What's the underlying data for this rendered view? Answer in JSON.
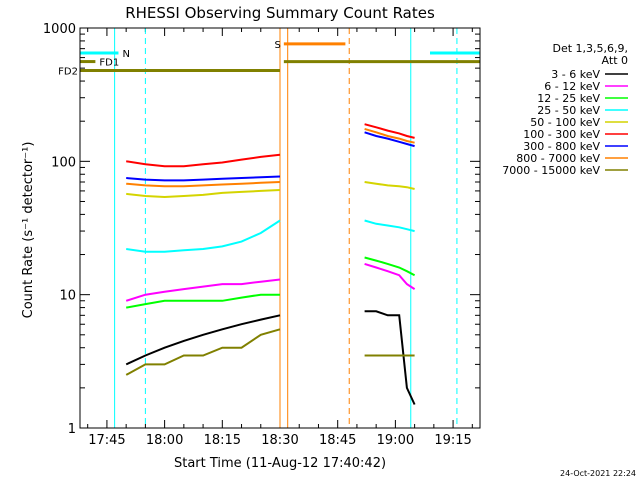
{
  "chart_data": {
    "type": "line",
    "title": "RHESSI Observing Summary Count Rates",
    "xlabel": "Start Time (11-Aug-12 17:40:42)",
    "ylabel": "Count Rate (s⁻¹ detector⁻¹)",
    "yscale": "log",
    "ylim": [
      1,
      1000
    ],
    "xlim": [
      "17:38",
      "19:22"
    ],
    "x_ticks": [
      "17:45",
      "18:00",
      "18:15",
      "18:30",
      "18:45",
      "19:00",
      "19:15"
    ],
    "y_ticks": [
      "1",
      "10",
      "100",
      "1000"
    ],
    "legend": {
      "placement": "right",
      "header": [
        "Det 1,3,5,6,9,",
        "Att 0"
      ]
    },
    "series": [
      {
        "name": "3 - 6 keV",
        "color": "#000000",
        "x": [
          "17:50",
          "17:55",
          "18:00",
          "18:05",
          "18:10",
          "18:15",
          "18:20",
          "18:25",
          "18:30"
        ],
        "values": [
          3,
          3.5,
          4,
          4.5,
          5,
          5.5,
          6,
          6.5,
          7
        ],
        "x2": [
          "18:52",
          "18:55",
          "18:58",
          "19:01",
          "19:03",
          "19:05"
        ],
        "values2": [
          7.5,
          7.5,
          7,
          7,
          2,
          1.5
        ]
      },
      {
        "name": "6 - 12 keV",
        "color": "#ff00ff",
        "x": [
          "17:50",
          "17:55",
          "18:00",
          "18:05",
          "18:10",
          "18:15",
          "18:20",
          "18:25",
          "18:30"
        ],
        "values": [
          9,
          10,
          10.5,
          11,
          11.5,
          12,
          12,
          12.5,
          13
        ],
        "x2": [
          "18:52",
          "18:55",
          "18:58",
          "19:01",
          "19:03",
          "19:05"
        ],
        "values2": [
          17,
          16,
          15,
          14,
          12,
          11
        ]
      },
      {
        "name": "12 - 25 keV",
        "color": "#00ff00",
        "x": [
          "17:50",
          "17:55",
          "18:00",
          "18:05",
          "18:10",
          "18:15",
          "18:20",
          "18:25",
          "18:30"
        ],
        "values": [
          8,
          8.5,
          9,
          9,
          9,
          9,
          9.5,
          10,
          10
        ],
        "x2": [
          "18:52",
          "18:55",
          "18:58",
          "19:01",
          "19:03",
          "19:05"
        ],
        "values2": [
          19,
          18,
          17,
          16,
          15,
          14
        ]
      },
      {
        "name": "25 - 50 keV",
        "color": "#00ffff",
        "x": [
          "17:50",
          "17:55",
          "18:00",
          "18:05",
          "18:10",
          "18:15",
          "18:20",
          "18:25",
          "18:30"
        ],
        "values": [
          22,
          21,
          21,
          21.5,
          22,
          23,
          25,
          29,
          36
        ],
        "x2": [
          "18:52",
          "18:55",
          "18:58",
          "19:01",
          "19:03",
          "19:05"
        ],
        "values2": [
          36,
          34,
          33,
          32,
          31,
          30
        ]
      },
      {
        "name": "50 - 100 keV",
        "color": "#d4d400",
        "x": [
          "17:50",
          "17:55",
          "18:00",
          "18:05",
          "18:10",
          "18:15",
          "18:20",
          "18:25",
          "18:30"
        ],
        "values": [
          57,
          55,
          54,
          55,
          56,
          58,
          59,
          60,
          61
        ],
        "x2": [
          "18:52",
          "18:55",
          "18:58",
          "19:01",
          "19:03",
          "19:05"
        ],
        "values2": [
          70,
          68,
          66,
          65,
          64,
          62
        ]
      },
      {
        "name": "100 - 300 keV",
        "color": "#ff0000",
        "x": [
          "17:50",
          "17:55",
          "18:00",
          "18:05",
          "18:10",
          "18:15",
          "18:20",
          "18:25",
          "18:30"
        ],
        "values": [
          100,
          95,
          92,
          92,
          95,
          98,
          103,
          108,
          112
        ],
        "x2": [
          "18:52",
          "18:55",
          "18:58",
          "19:01",
          "19:03",
          "19:05"
        ],
        "values2": [
          190,
          180,
          170,
          162,
          155,
          150
        ]
      },
      {
        "name": "300 - 800 keV",
        "color": "#0000ff",
        "x": [
          "17:50",
          "17:55",
          "18:00",
          "18:05",
          "18:10",
          "18:15",
          "18:20",
          "18:25",
          "18:30"
        ],
        "values": [
          75,
          73,
          72,
          72,
          73,
          74,
          75,
          76,
          77
        ],
        "x2": [
          "18:52",
          "18:55",
          "18:58",
          "19:01",
          "19:03",
          "19:05"
        ],
        "values2": [
          165,
          155,
          148,
          140,
          135,
          130
        ]
      },
      {
        "name": "800 - 7000 keV",
        "color": "#ff8000",
        "x": [
          "17:50",
          "17:55",
          "18:00",
          "18:05",
          "18:10",
          "18:15",
          "18:20",
          "18:25",
          "18:30"
        ],
        "values": [
          68,
          66,
          65,
          65,
          66,
          67,
          68,
          69,
          70
        ],
        "x2": [
          "18:52",
          "18:55",
          "18:58",
          "19:01",
          "19:03",
          "19:05"
        ],
        "values2": [
          175,
          165,
          155,
          148,
          142,
          138
        ]
      },
      {
        "name": "7000 - 15000 keV",
        "color": "#808000",
        "x": [
          "17:50",
          "17:55",
          "18:00",
          "18:05",
          "18:10",
          "18:15",
          "18:20",
          "18:25",
          "18:30"
        ],
        "values": [
          2.5,
          3,
          3,
          3.5,
          3.5,
          4,
          4,
          5,
          5.5
        ],
        "x2": [
          "18:52",
          "18:55",
          "18:58",
          "19:01",
          "19:03",
          "19:05"
        ],
        "values2": [
          3.5,
          3.5,
          3.5,
          3.5,
          3.5,
          3.5
        ]
      }
    ],
    "flag_bars": [
      {
        "label": "N",
        "color": "#00ffff",
        "value": 650,
        "ranges": [
          [
            "17:38",
            "17:48"
          ],
          [
            "19:09",
            "19:22"
          ]
        ]
      },
      {
        "label": "FD1",
        "color": "#808000",
        "value": 560,
        "ranges": [
          [
            "17:38",
            "17:42"
          ]
        ]
      },
      {
        "label": "FD2",
        "color": "#808000",
        "value": 480,
        "ranges": [
          [
            "17:38",
            "18:30"
          ]
        ]
      },
      {
        "label": "",
        "color": "#808000",
        "value": 560,
        "ranges": [
          [
            "18:31",
            "19:22"
          ]
        ]
      },
      {
        "label": "S",
        "color": "#ff8000",
        "value": 760,
        "ranges": [
          [
            "18:31",
            "18:47"
          ]
        ]
      }
    ],
    "vlines": [
      {
        "x": "17:47",
        "color": "#00ffff",
        "style": "solid"
      },
      {
        "x": "17:55",
        "color": "#00ffff",
        "style": "dashed"
      },
      {
        "x": "18:30",
        "color": "#ff8000",
        "style": "solid"
      },
      {
        "x": "18:32",
        "color": "#ff8000",
        "style": "solid"
      },
      {
        "x": "18:48",
        "color": "#ff8000",
        "style": "dashed"
      },
      {
        "x": "19:04",
        "color": "#00ffff",
        "style": "solid"
      },
      {
        "x": "19:16",
        "color": "#00ffff",
        "style": "dashed"
      }
    ],
    "timestamp": "24-Oct-2021 22:24"
  }
}
